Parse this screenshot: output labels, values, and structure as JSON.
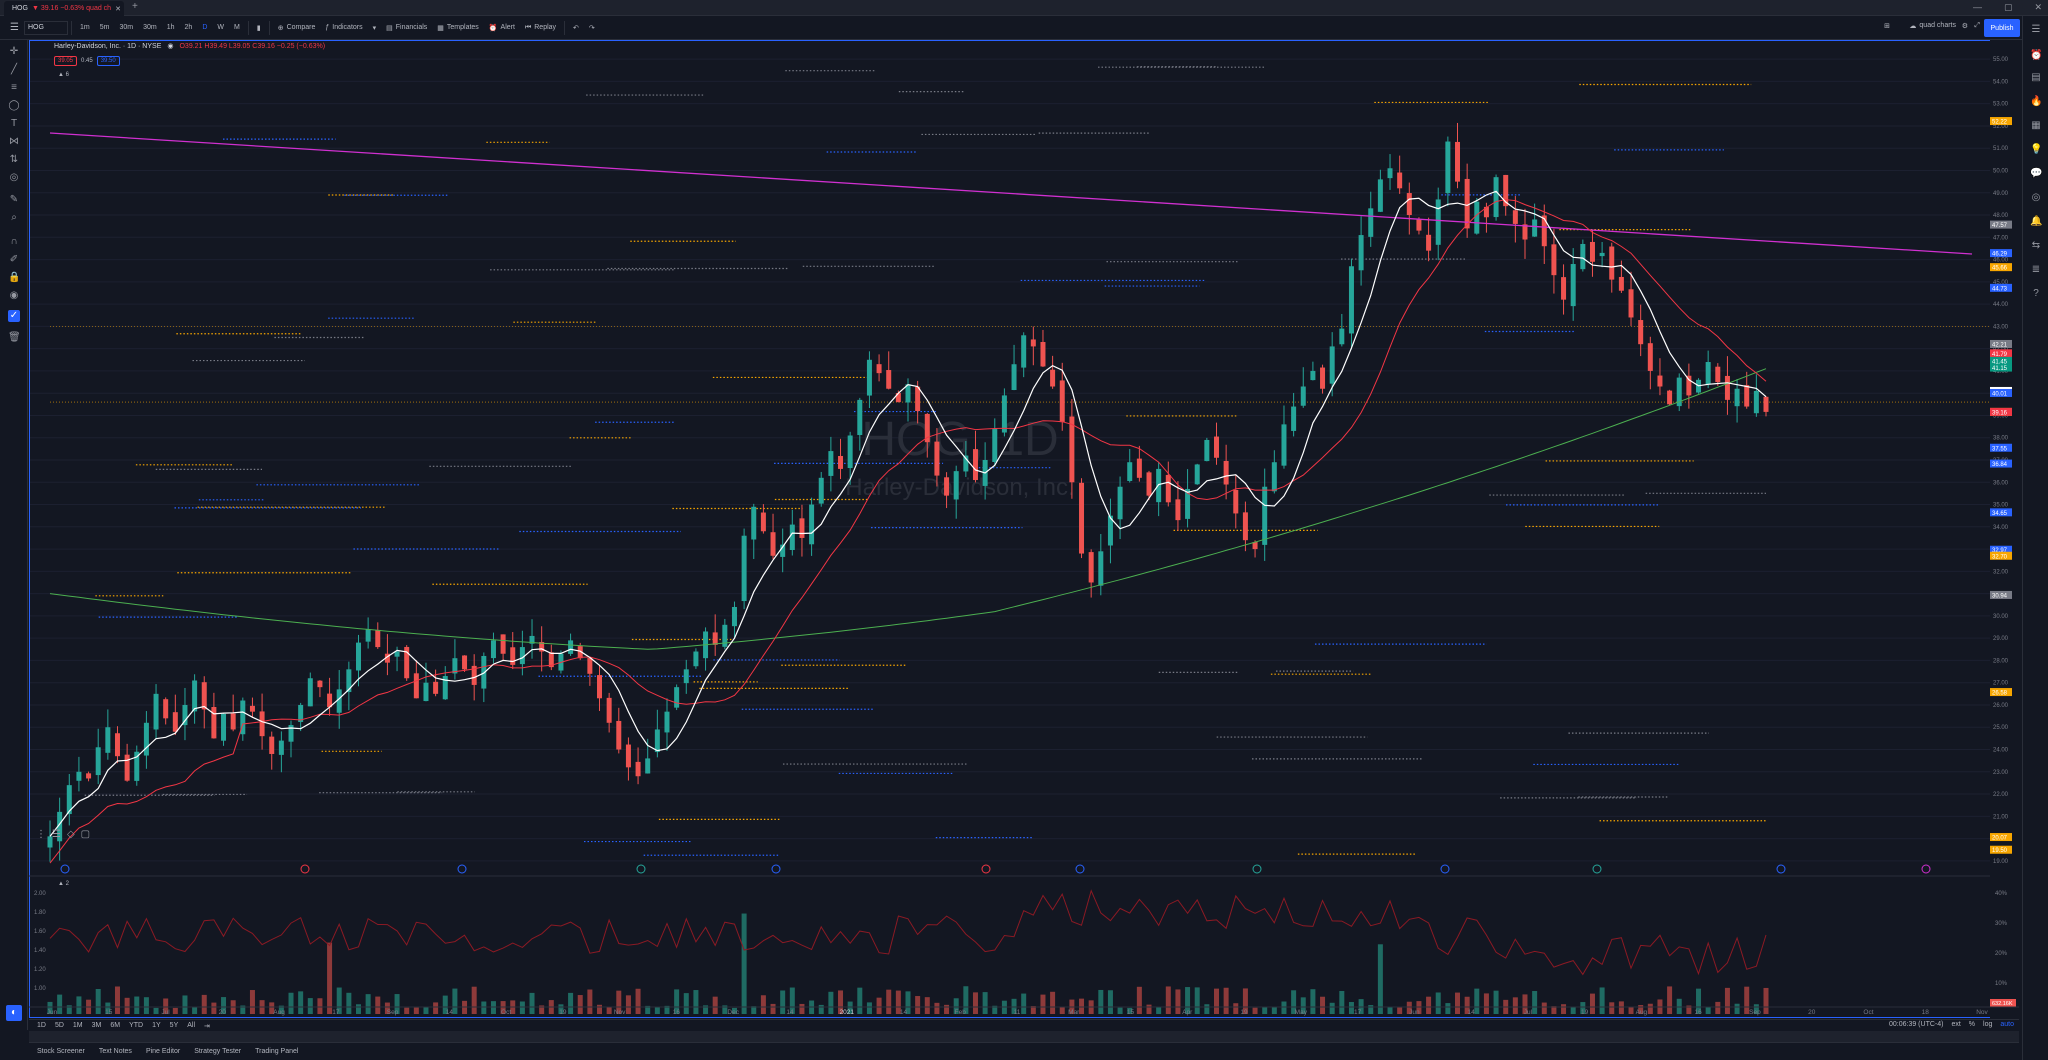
{
  "browser": {
    "tab_symbol": "HOG",
    "tab_change": "▼ 39.16 −0.63% quad ch",
    "new_tab_icon": "plus-icon"
  },
  "toolbar": {
    "symbol": "HOG",
    "intervals": [
      "1m",
      "5m",
      "30m",
      "30m",
      "1h",
      "2h",
      "D",
      "W",
      "M"
    ],
    "compare": "Compare",
    "indicators": "Indicators",
    "financials": "Financials",
    "templates": "Templates",
    "alert": "Alert",
    "replay": "Replay",
    "layout_name": "quad charts",
    "publish": "Publish"
  },
  "legend": {
    "title": "Harley-Davidson, Inc. · 1D · NYSE",
    "ohlc": "O39.21 H39.49 L39.05 C39.16 −0.25 (−0.63%)",
    "bid": "39.05",
    "spread": "0.45",
    "ask": "39.50",
    "collapse": "▲ 6"
  },
  "watermark": {
    "symbol": "HOG, 1D",
    "name": "Harley-Davidson, Inc."
  },
  "price_scale": {
    "ticks": [
      "55.00",
      "54.00",
      "53.00",
      "52.00",
      "51.00",
      "50.00",
      "49.00",
      "48.00",
      "47.00",
      "46.00",
      "45.00",
      "44.00",
      "43.00",
      "42.00",
      "41.00",
      "40.00",
      "39.00",
      "38.00",
      "37.00",
      "36.00",
      "35.00",
      "34.00",
      "33.00",
      "32.00",
      "31.00",
      "30.00",
      "29.00",
      "28.00",
      "27.00",
      "26.00",
      "25.00",
      "24.00",
      "23.00",
      "22.00",
      "21.00",
      "20.00",
      "19.00"
    ],
    "labels": [
      {
        "v": "52.22",
        "c": "#f7a600"
      },
      {
        "v": "47.57",
        "c": "#787b86"
      },
      {
        "v": "46.29",
        "c": "#2962ff"
      },
      {
        "v": "45.66",
        "c": "#f7a600"
      },
      {
        "v": "44.73",
        "c": "#2962ff"
      },
      {
        "v": "42.21",
        "c": "#787b86"
      },
      {
        "v": "41.79",
        "c": "#f23645"
      },
      {
        "v": "41.45",
        "c": "#089981"
      },
      {
        "v": "41.15",
        "c": "#089981"
      },
      {
        "v": "40.10",
        "c": "#ffffff"
      },
      {
        "v": "40.01",
        "c": "#2962ff"
      },
      {
        "v": "39.16",
        "c": "#f7a600"
      },
      {
        "v": "39.16",
        "c": "#f23645"
      },
      {
        "v": "37.55",
        "c": "#2962ff"
      },
      {
        "v": "36.84",
        "c": "#2962ff"
      },
      {
        "v": "34.65",
        "c": "#2962ff"
      },
      {
        "v": "32.97",
        "c": "#2962ff"
      },
      {
        "v": "32.70",
        "c": "#f7a600"
      },
      {
        "v": "30.94",
        "c": "#787b86"
      },
      {
        "v": "26.58",
        "c": "#f7a600"
      },
      {
        "v": "20.07",
        "c": "#f7a600"
      },
      {
        "v": "19.50",
        "c": "#f7a600"
      }
    ],
    "vol_ticks": [
      "40%",
      "30%",
      "20%",
      "10%"
    ],
    "vol_label": "632.16K"
  },
  "volume_scale": [
    "2.00",
    "1.80",
    "1.60",
    "1.40",
    "1.20",
    "1.00"
  ],
  "time_axis": [
    "Jun",
    "15",
    "Jul",
    "20",
    "Aug",
    "17",
    "Sep",
    "14",
    "Oct",
    "19",
    "Nov",
    "16",
    "Dec",
    "14",
    "2021",
    "14",
    "Feb",
    "11",
    "Mar",
    "15",
    "Apr",
    "19",
    "May",
    "17",
    "Jun",
    "14",
    "Jul",
    "19",
    "Aug",
    "16",
    "Sep",
    "20",
    "Oct",
    "18",
    "Nov"
  ],
  "range_bar": [
    "1D",
    "5D",
    "1M",
    "3M",
    "6M",
    "YTD",
    "1Y",
    "5Y",
    "All"
  ],
  "clock": {
    "time": "00:06:39 (UTC-4)",
    "ext": "ext",
    "pct": "%",
    "log": "log",
    "auto": "auto"
  },
  "bottom_tabs": [
    "Stock Screener",
    "Text Notes",
    "Pine Editor",
    "Strategy Tester",
    "Trading Panel"
  ],
  "chart_data": {
    "type": "candlestick",
    "title": "Harley-Davidson, Inc. · 1D · NYSE",
    "ylim": [
      18.5,
      55.5
    ],
    "x_start_month": "Jun",
    "x_end_month": "Nov",
    "closes": [
      20.1,
      21.2,
      22.4,
      23.0,
      22.7,
      24.1,
      25.0,
      23.7,
      22.6,
      23.9,
      25.2,
      26.5,
      25.4,
      24.8,
      26.0,
      27.1,
      25.8,
      24.5,
      25.6,
      24.9,
      26.2,
      25.7,
      24.6,
      23.8,
      24.4,
      25.1,
      26.0,
      27.2,
      26.8,
      25.9,
      26.7,
      27.6,
      28.8,
      29.4,
      28.6,
      27.9,
      28.4,
      27.2,
      26.3,
      27.0,
      26.5,
      27.3,
      28.1,
      27.6,
      26.9,
      28.2,
      28.9,
      28.3,
      27.8,
      28.6,
      29.1,
      28.4,
      27.7,
      28.3,
      28.9,
      28.1,
      27.4,
      26.3,
      25.2,
      24.0,
      23.2,
      22.8,
      23.6,
      24.9,
      25.7,
      26.8,
      27.6,
      28.4,
      29.3,
      28.7,
      29.6,
      30.4,
      33.6,
      34.9,
      33.8,
      32.7,
      33.2,
      34.1,
      33.5,
      35.0,
      36.2,
      37.4,
      36.6,
      38.1,
      39.7,
      41.5,
      40.9,
      40.2,
      39.6,
      40.4,
      39.2,
      37.8,
      36.3,
      35.4,
      36.5,
      37.2,
      36.1,
      37.0,
      38.4,
      39.9,
      41.3,
      42.6,
      42.1,
      41.2,
      40.3,
      38.7,
      36.0,
      32.8,
      31.5,
      32.9,
      34.5,
      35.8,
      36.9,
      36.2,
      35.4,
      36.6,
      35.1,
      34.3,
      35.7,
      36.8,
      37.9,
      37.1,
      35.9,
      34.6,
      33.4,
      33.0,
      35.8,
      36.9,
      38.6,
      39.4,
      40.3,
      41.0,
      40.2,
      42.1,
      42.9,
      45.7,
      47.1,
      48.3,
      49.6,
      50.1,
      49.2,
      48.0,
      47.3,
      46.4,
      48.7,
      51.3,
      49.5,
      47.4,
      48.6,
      47.9,
      49.7,
      48.4,
      47.6,
      46.9,
      47.8,
      46.6,
      45.3,
      44.2,
      45.8,
      46.7,
      45.9,
      46.3,
      45.1,
      44.6,
      43.4,
      42.2,
      41.0,
      40.3,
      39.5,
      40.7,
      39.9,
      40.6,
      41.4,
      40.5,
      39.7,
      40.2,
      39.4,
      40.1,
      39.16
    ],
    "sma20_color": "#ffffff",
    "sma50_color": "#f23645",
    "sma200_color": "#4caf50",
    "trendline_color": "#d030d0"
  }
}
